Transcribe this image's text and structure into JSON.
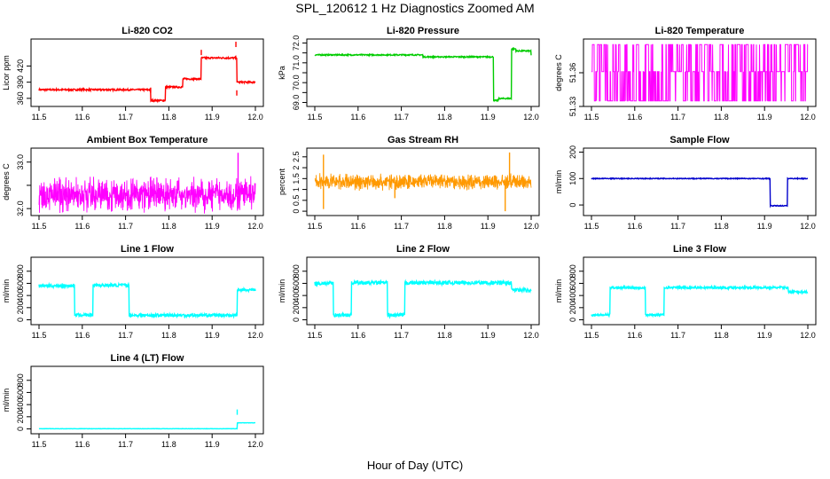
{
  "page": {
    "title": "SPL_120612  1 Hz Diagnostics Zoomed AM",
    "xlabel": "Hour of Day (UTC)"
  },
  "chart_data": [
    {
      "type": "line",
      "title": "Li-820 CO2",
      "ylabel": "Licor ppm",
      "color": "#ff0000",
      "xlim": [
        11.5,
        12.0
      ],
      "ylim": [
        345,
        470
      ],
      "xticks": [
        "11.5",
        "11.6",
        "11.7",
        "11.8",
        "11.9",
        "12.0"
      ],
      "yticks": [
        360,
        390,
        420
      ],
      "steps": [
        [
          11.5,
          376
        ],
        [
          11.758,
          356
        ],
        [
          11.792,
          381
        ],
        [
          11.832,
          396
        ],
        [
          11.875,
          435
        ],
        [
          11.957,
          390
        ],
        [
          12.0,
          390
        ]
      ],
      "spikes": [
        [
          11.758,
          380
        ],
        [
          11.875,
          450
        ],
        [
          11.955,
          465
        ],
        [
          11.957,
          375
        ]
      ],
      "noise": 1.5
    },
    {
      "type": "line",
      "title": "Li-820 Pressure",
      "ylabel": "kPa",
      "color": "#00cc00",
      "xlim": [
        11.5,
        12.0
      ],
      "ylim": [
        68.8,
        72.2
      ],
      "xticks": [
        "11.5",
        "11.6",
        "11.7",
        "11.8",
        "11.9",
        "12.0"
      ],
      "yticks": [
        69.0,
        69.5,
        70.0,
        70.5,
        71.0,
        71.5,
        72.0
      ],
      "ytick_labels": [
        "69.0",
        "",
        "70.0",
        "",
        "71.0",
        "",
        "72.0"
      ],
      "steps": [
        [
          11.5,
          71.4
        ],
        [
          11.75,
          71.3
        ],
        [
          11.815,
          71.3
        ],
        [
          11.913,
          69.1
        ],
        [
          11.925,
          69.2
        ],
        [
          11.955,
          71.7
        ],
        [
          11.965,
          71.6
        ],
        [
          12.0,
          71.35
        ]
      ],
      "noise": 0.03
    },
    {
      "type": "band",
      "title": "Li-820 Temperature",
      "ylabel": "degrees C",
      "color": "#ff00ff",
      "xlim": [
        11.5,
        12.0
      ],
      "ylim": [
        51.33,
        51.39
      ],
      "xticks": [
        "11.5",
        "11.6",
        "11.7",
        "11.8",
        "11.9",
        "12.0"
      ],
      "yticks": [
        51.33,
        51.36
      ],
      "levels": [
        51.335,
        51.361,
        51.385
      ],
      "mode": "digital"
    },
    {
      "type": "band",
      "title": "Ambient Box Temperature",
      "ylabel": "degrees C",
      "color": "#ff00ff",
      "xlim": [
        11.5,
        12.0
      ],
      "ylim": [
        31.85,
        33.3
      ],
      "xticks": [
        "11.5",
        "11.6",
        "11.7",
        "11.8",
        "11.9",
        "12.0"
      ],
      "yticks": [
        32.0,
        32.5,
        33.0
      ],
      "ytick_labels": [
        "32.0",
        "",
        "33.0"
      ],
      "center": 32.3,
      "amp": 0.35,
      "mode": "noise",
      "spikes": [
        [
          11.96,
          33.2
        ]
      ]
    },
    {
      "type": "band",
      "title": "Gas Stream RH",
      "ylabel": "percent",
      "color": "#ff9900",
      "xlim": [
        11.5,
        12.0
      ],
      "ylim": [
        -0.2,
        2.9
      ],
      "xticks": [
        "11.5",
        "11.6",
        "11.7",
        "11.8",
        "11.9",
        "12.0"
      ],
      "yticks": [
        0.0,
        0.5,
        1.0,
        1.5,
        2.0,
        2.5
      ],
      "center": 1.35,
      "amp": 0.35,
      "mode": "noise",
      "spikes": [
        [
          11.52,
          0.1
        ],
        [
          11.52,
          2.6
        ],
        [
          11.685,
          0.6
        ],
        [
          11.95,
          2.7
        ],
        [
          11.94,
          0.0
        ]
      ]
    },
    {
      "type": "line",
      "title": "Sample Flow",
      "ylabel": "ml/min",
      "color": "#0000cc",
      "xlim": [
        11.5,
        12.0
      ],
      "ylim": [
        -40,
        215
      ],
      "xticks": [
        "11.5",
        "11.6",
        "11.7",
        "11.8",
        "11.9",
        "12.0"
      ],
      "yticks": [
        0,
        100,
        200
      ],
      "steps": [
        [
          11.5,
          100
        ],
        [
          11.913,
          -3
        ],
        [
          11.953,
          100
        ],
        [
          12.0,
          100
        ]
      ],
      "noise": 1.5
    },
    {
      "type": "line",
      "title": "Line 1 Flow",
      "ylabel": "ml/min",
      "color": "#00ffff",
      "xlim": [
        11.5,
        12.0
      ],
      "ylim": [
        -80,
        1030
      ],
      "xticks": [
        "11.5",
        "11.6",
        "11.7",
        "11.8",
        "11.9",
        "12.0"
      ],
      "yticks": [
        0,
        200,
        400,
        600,
        800
      ],
      "steps": [
        [
          11.5,
          560
        ],
        [
          11.582,
          80
        ],
        [
          11.625,
          570
        ],
        [
          11.708,
          75
        ],
        [
          11.958,
          490
        ],
        [
          12.0,
          490
        ]
      ],
      "noise": 25
    },
    {
      "type": "line",
      "title": "Line 2 Flow",
      "ylabel": "ml/min",
      "color": "#00ffff",
      "xlim": [
        11.5,
        12.0
      ],
      "ylim": [
        -80,
        1030
      ],
      "xticks": [
        "11.5",
        "11.6",
        "11.7",
        "11.8",
        "11.9",
        "12.0"
      ],
      "yticks": [
        0,
        200,
        400,
        600,
        800
      ],
      "steps": [
        [
          11.5,
          600
        ],
        [
          11.543,
          80
        ],
        [
          11.585,
          610
        ],
        [
          11.668,
          75
        ],
        [
          11.708,
          610
        ],
        [
          11.955,
          490
        ],
        [
          12.0,
          490
        ]
      ],
      "noise": 30
    },
    {
      "type": "line",
      "title": "Line 3 Flow",
      "ylabel": "ml/min",
      "color": "#00ffff",
      "xlim": [
        11.5,
        12.0
      ],
      "ylim": [
        -80,
        1030
      ],
      "xticks": [
        "11.5",
        "11.6",
        "11.7",
        "11.8",
        "11.9",
        "12.0"
      ],
      "yticks": [
        0,
        200,
        400,
        600,
        800
      ],
      "steps": [
        [
          11.5,
          80
        ],
        [
          11.543,
          530
        ],
        [
          11.625,
          80
        ],
        [
          11.668,
          530
        ],
        [
          11.955,
          460
        ],
        [
          12.0,
          460
        ]
      ],
      "noise": 18
    },
    {
      "type": "line",
      "title": "Line 4 (LT) Flow",
      "ylabel": "ml/min",
      "color": "#00ffff",
      "xlim": [
        11.5,
        12.0
      ],
      "ylim": [
        -80,
        1030
      ],
      "xticks": [
        "11.5",
        "11.6",
        "11.7",
        "11.8",
        "11.9",
        "12.0"
      ],
      "yticks": [
        0,
        200,
        400,
        600,
        800
      ],
      "steps": [
        [
          11.5,
          3
        ],
        [
          11.958,
          100
        ],
        [
          12.0,
          100
        ]
      ],
      "spikes": [
        [
          11.958,
          320
        ]
      ],
      "noise": 2
    }
  ]
}
